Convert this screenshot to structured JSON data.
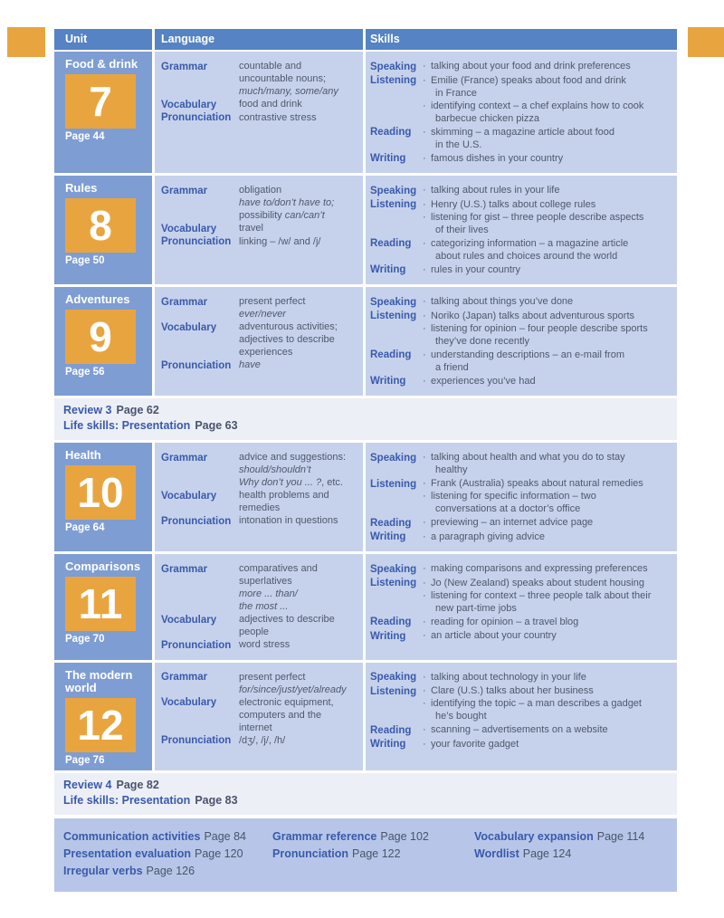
{
  "bullet_char": "·",
  "colors": {
    "accent_orange": "#E8A53F",
    "header_blue": "#5583C3",
    "unit_cell_blue": "#7E9DD3",
    "content_light_blue": "#C6D2EC",
    "label_blue": "#3A59AB",
    "body_text": "#4E586B",
    "review_strip_bg": "#EDEFF7",
    "footer_bg": "#B7C6E8"
  },
  "header": {
    "unit": "Unit",
    "language": "Language",
    "skills": "Skills"
  },
  "units": [
    {
      "title": [
        "Food & drink"
      ],
      "number": "7",
      "page": "Page 44",
      "language": [
        {
          "label": "Grammar",
          "lines": [
            [
              {
                "t": "countable and",
                "i": false
              }
            ],
            [
              {
                "t": "uncountable nouns;",
                "i": false
              }
            ],
            [
              {
                "t": "much/many, some/any",
                "i": true
              }
            ]
          ]
        },
        {
          "label": "Vocabulary",
          "lines": [
            [
              {
                "t": "food and drink",
                "i": false
              }
            ]
          ]
        },
        {
          "label": "Pronunciation",
          "lines": [
            [
              {
                "t": "contrastive stress",
                "i": false
              }
            ]
          ]
        }
      ],
      "skills": [
        {
          "label": "Speaking",
          "items": [
            [
              "talking about your food and drink preferences"
            ]
          ]
        },
        {
          "label": "Listening",
          "items": [
            [
              "Emilie (France) speaks about food and drink",
              "in France"
            ],
            [
              "identifying context – a chef explains how to cook",
              "barbecue chicken pizza"
            ]
          ]
        },
        {
          "label": "Reading",
          "items": [
            [
              "skimming – a magazine article about food",
              "in the U.S."
            ]
          ]
        },
        {
          "label": "Writing",
          "items": [
            [
              "famous dishes in your country"
            ]
          ]
        }
      ]
    },
    {
      "title": [
        "Rules"
      ],
      "number": "8",
      "page": "Page 50",
      "language": [
        {
          "label": "Grammar",
          "lines": [
            [
              {
                "t": "obligation",
                "i": false
              }
            ],
            [
              {
                "t": "have to/don’t have to;",
                "i": true
              }
            ],
            [
              {
                "t": "possibility ",
                "i": false
              },
              {
                "t": "can/can’t",
                "i": true
              }
            ]
          ]
        },
        {
          "label": "Vocabulary",
          "lines": [
            [
              {
                "t": "travel",
                "i": false
              }
            ]
          ]
        },
        {
          "label": "Pronunciation",
          "lines": [
            [
              {
                "t": "linking – /w/ and /j/",
                "i": false
              }
            ]
          ]
        }
      ],
      "skills": [
        {
          "label": "Speaking",
          "items": [
            [
              "talking about rules in your life"
            ]
          ]
        },
        {
          "label": "Listening",
          "items": [
            [
              "Henry (U.S.) talks about college rules"
            ],
            [
              "listening for gist – three people describe aspects",
              "of their lives"
            ]
          ]
        },
        {
          "label": "Reading",
          "items": [
            [
              "categorizing information – a magazine article",
              "about rules and choices around the world"
            ]
          ]
        },
        {
          "label": "Writing",
          "items": [
            [
              "rules in your country"
            ]
          ]
        }
      ]
    },
    {
      "title": [
        "Adventures"
      ],
      "number": "9",
      "page": "Page 56",
      "language": [
        {
          "label": "Grammar",
          "lines": [
            [
              {
                "t": "present perfect",
                "i": false
              }
            ],
            [
              {
                "t": "ever/never",
                "i": true
              }
            ]
          ]
        },
        {
          "label": "Vocabulary",
          "lines": [
            [
              {
                "t": "adventurous activities;",
                "i": false
              }
            ],
            [
              {
                "t": "adjectives to describe",
                "i": false
              }
            ],
            [
              {
                "t": "experiences",
                "i": false
              }
            ]
          ]
        },
        {
          "label": "Pronunciation",
          "lines": [
            [
              {
                "t": "have",
                "i": true
              }
            ]
          ]
        }
      ],
      "skills": [
        {
          "label": "Speaking",
          "items": [
            [
              "talking about things you’ve done"
            ]
          ]
        },
        {
          "label": "Listening",
          "items": [
            [
              "Noriko (Japan) talks about adventurous sports"
            ],
            [
              "listening for opinion – four people describe sports",
              "they’ve done recently"
            ]
          ]
        },
        {
          "label": "Reading",
          "items": [
            [
              "understanding descriptions – an e-mail from",
              "a friend"
            ]
          ]
        },
        {
          "label": "Writing",
          "items": [
            [
              "experiences you’ve had"
            ]
          ]
        }
      ]
    },
    {
      "title": [
        "Health"
      ],
      "number": "10",
      "page": "Page 64",
      "language": [
        {
          "label": "Grammar",
          "lines": [
            [
              {
                "t": "advice and suggestions:",
                "i": false
              }
            ],
            [
              {
                "t": "should/shouldn’t",
                "i": true
              }
            ],
            [
              {
                "t": "Why don’t you ... ?",
                "i": true
              },
              {
                "t": ", etc.",
                "i": false
              }
            ]
          ]
        },
        {
          "label": "Vocabulary",
          "lines": [
            [
              {
                "t": "health problems and",
                "i": false
              }
            ],
            [
              {
                "t": "remedies",
                "i": false
              }
            ]
          ]
        },
        {
          "label": "Pronunciation",
          "lines": [
            [
              {
                "t": "intonation in questions",
                "i": false
              }
            ]
          ]
        }
      ],
      "skills": [
        {
          "label": "Speaking",
          "items": [
            [
              "talking about health and what you do to stay",
              "healthy"
            ]
          ]
        },
        {
          "label": "Listening",
          "items": [
            [
              "Frank (Australia) speaks about natural remedies"
            ],
            [
              "listening for specific information – two",
              "conversations at a doctor’s office"
            ]
          ]
        },
        {
          "label": "Reading",
          "items": [
            [
              "previewing – an internet advice page"
            ]
          ]
        },
        {
          "label": "Writing",
          "items": [
            [
              "a paragraph giving advice"
            ]
          ]
        }
      ]
    },
    {
      "title": [
        "Comparisons"
      ],
      "number": "11",
      "page": "Page 70",
      "language": [
        {
          "label": "Grammar",
          "lines": [
            [
              {
                "t": "comparatives and",
                "i": false
              }
            ],
            [
              {
                "t": "superlatives",
                "i": false
              }
            ],
            [
              {
                "t": "more ... than/",
                "i": true
              }
            ],
            [
              {
                "t": "the most ...",
                "i": true
              }
            ]
          ]
        },
        {
          "label": "Vocabulary",
          "lines": [
            [
              {
                "t": "adjectives to describe",
                "i": false
              }
            ],
            [
              {
                "t": "people",
                "i": false
              }
            ]
          ]
        },
        {
          "label": "Pronunciation",
          "lines": [
            [
              {
                "t": "word stress",
                "i": false
              }
            ]
          ]
        }
      ],
      "skills": [
        {
          "label": "Speaking",
          "items": [
            [
              "making comparisons and expressing preferences"
            ]
          ]
        },
        {
          "label": "Listening",
          "items": [
            [
              "Jo (New Zealand) speaks about student housing"
            ],
            [
              "listening for context – three people talk about their",
              "new part-time jobs"
            ]
          ]
        },
        {
          "label": "Reading",
          "items": [
            [
              "reading for opinion – a travel blog"
            ]
          ]
        },
        {
          "label": "Writing",
          "items": [
            [
              "an article about your country"
            ]
          ]
        }
      ]
    },
    {
      "title": [
        "The modern",
        "world"
      ],
      "number": "12",
      "page": "Page 76",
      "language": [
        {
          "label": "Grammar",
          "lines": [
            [
              {
                "t": "present perfect",
                "i": false
              }
            ],
            [
              {
                "t": "for/since/just/yet/already",
                "i": true
              }
            ]
          ]
        },
        {
          "label": "Vocabulary",
          "lines": [
            [
              {
                "t": "electronic equipment,",
                "i": false
              }
            ],
            [
              {
                "t": "computers and the",
                "i": false
              }
            ],
            [
              {
                "t": "internet",
                "i": false
              }
            ]
          ]
        },
        {
          "label": "Pronunciation",
          "lines": [
            [
              {
                "t": "/dʒ/, /j/, /h/",
                "i": false
              }
            ]
          ]
        }
      ],
      "skills": [
        {
          "label": "Speaking",
          "items": [
            [
              "talking about technology in your life"
            ]
          ]
        },
        {
          "label": "Listening",
          "items": [
            [
              "Clare (U.S.) talks about her business"
            ],
            [
              "identifying the topic – a man describes a gadget",
              "he’s bought"
            ]
          ]
        },
        {
          "label": "Reading",
          "items": [
            [
              "scanning – advertisements on a website"
            ]
          ]
        },
        {
          "label": "Writing",
          "items": [
            [
              "your favorite gadget"
            ]
          ]
        }
      ]
    }
  ],
  "reviews": [
    {
      "after_unit": "9",
      "review_label": "Review 3",
      "review_page": "Page 62",
      "life_label": "Life skills: Presentation",
      "life_page": "Page 63"
    },
    {
      "after_unit": "12",
      "review_label": "Review 4",
      "review_page": "Page 82",
      "life_label": "Life skills: Presentation",
      "life_page": "Page 83"
    }
  ],
  "footer": {
    "columns": [
      [
        {
          "label": "Communication activities",
          "page": "Page 84"
        },
        {
          "label": "Presentation evaluation",
          "page": "Page 120"
        },
        {
          "label": "Irregular verbs",
          "page": "Page 126"
        }
      ],
      [
        {
          "label": "Grammar reference",
          "page": "Page 102"
        },
        {
          "label": "Pronunciation",
          "page": "Page 122"
        }
      ],
      [
        {
          "label": "Vocabulary expansion",
          "page": "Page 114"
        },
        {
          "label": "Wordlist",
          "page": "Page 124"
        }
      ]
    ]
  }
}
